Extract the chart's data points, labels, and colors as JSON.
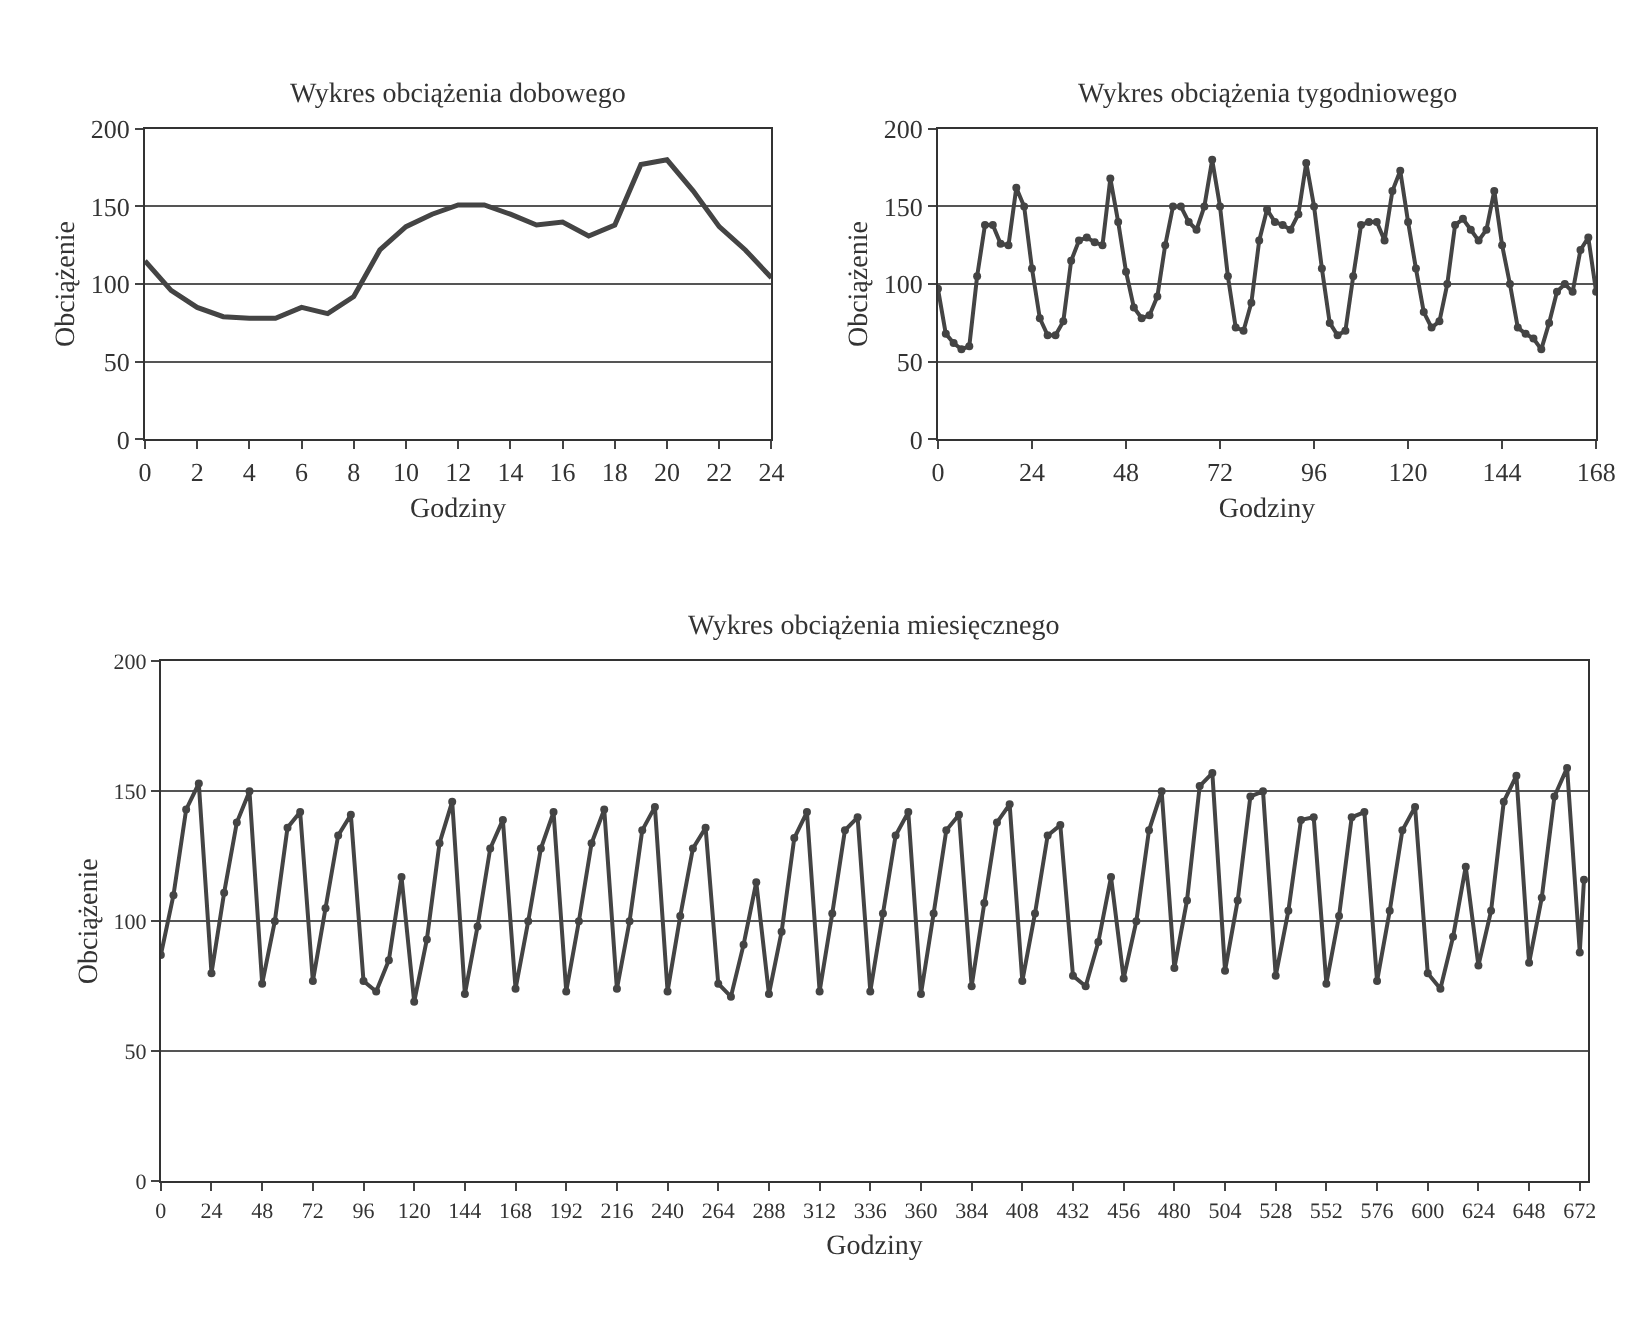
{
  "chart_data": [
    {
      "type": "line",
      "title": "Wykres obciążenia dobowego",
      "xlabel": "Godziny",
      "ylabel": "Obciążenie",
      "x": [
        0,
        1,
        2,
        3,
        4,
        5,
        6,
        7,
        8,
        9,
        10,
        11,
        12,
        13,
        14,
        15,
        16,
        17,
        18,
        19,
        20,
        21,
        22,
        23,
        24
      ],
      "series": [
        {
          "color": "#444444",
          "values": [
            115,
            96,
            85,
            79,
            78,
            78,
            85,
            81,
            92,
            122,
            137,
            145,
            151,
            151,
            145,
            138,
            140,
            131,
            138,
            177,
            180,
            160,
            137,
            122,
            104
          ]
        }
      ],
      "xlim": [
        0,
        24
      ],
      "xticks": [
        0,
        2,
        4,
        6,
        8,
        10,
        12,
        14,
        16,
        18,
        20,
        22,
        24
      ],
      "ylim": [
        0,
        200
      ],
      "yticks": [
        0,
        50,
        100,
        150,
        200
      ],
      "grid": "y",
      "marker": "none",
      "line_style": "solid"
    },
    {
      "type": "line",
      "title": "Wykres obciążenia tygodniowego",
      "xlabel": "Godziny",
      "ylabel": "Obciążenie",
      "x": [
        0,
        2,
        4,
        6,
        8,
        10,
        12,
        14,
        16,
        18,
        20,
        22,
        24,
        26,
        28,
        30,
        32,
        34,
        36,
        38,
        40,
        42,
        44,
        46,
        48,
        50,
        52,
        54,
        56,
        58,
        60,
        62,
        64,
        66,
        68,
        70,
        72,
        74,
        76,
        78,
        80,
        82,
        84,
        86,
        88,
        90,
        92,
        94,
        96,
        98,
        100,
        102,
        104,
        106,
        108,
        110,
        112,
        114,
        116,
        118,
        120,
        122,
        124,
        126,
        128,
        130,
        132,
        134,
        136,
        138,
        140,
        142,
        144,
        146,
        148,
        150,
        152,
        154,
        156,
        158,
        160,
        162,
        164,
        166,
        168
      ],
      "series": [
        {
          "color": "#444444",
          "values": [
            97,
            68,
            62,
            58,
            60,
            105,
            138,
            138,
            126,
            125,
            162,
            150,
            110,
            78,
            67,
            67,
            76,
            115,
            128,
            130,
            127,
            125,
            168,
            140,
            108,
            85,
            78,
            80,
            92,
            125,
            150,
            150,
            140,
            135,
            150,
            180,
            150,
            105,
            72,
            70,
            88,
            128,
            148,
            140,
            138,
            135,
            145,
            178,
            150,
            110,
            75,
            67,
            70,
            105,
            138,
            140,
            140,
            128,
            160,
            173,
            140,
            110,
            82,
            72,
            76,
            100,
            138,
            142,
            135,
            128,
            135,
            160,
            125,
            100,
            72,
            68,
            65,
            58,
            75,
            95,
            100,
            95,
            122,
            130,
            95
          ]
        }
      ],
      "xlim": [
        0,
        168
      ],
      "xticks": [
        0,
        24,
        48,
        72,
        96,
        120,
        144,
        168
      ],
      "ylim": [
        0,
        200
      ],
      "yticks": [
        0,
        50,
        100,
        150,
        200
      ],
      "grid": "y",
      "marker": "circle",
      "line_style": "solid"
    },
    {
      "type": "line",
      "title": "Wykres obciążenia miesięcznego",
      "xlabel": "Godziny",
      "ylabel": "Obciążenie",
      "x": [
        0,
        6,
        12,
        18,
        24,
        30,
        36,
        42,
        48,
        54,
        60,
        66,
        72,
        78,
        84,
        90,
        96,
        102,
        108,
        114,
        120,
        126,
        132,
        138,
        144,
        150,
        156,
        162,
        168,
        174,
        180,
        186,
        192,
        198,
        204,
        210,
        216,
        222,
        228,
        234,
        240,
        246,
        252,
        258,
        264,
        270,
        276,
        282,
        288,
        294,
        300,
        306,
        312,
        318,
        324,
        330,
        336,
        342,
        348,
        354,
        360,
        366,
        372,
        378,
        384,
        390,
        396,
        402,
        408,
        414,
        420,
        426,
        432,
        438,
        444,
        450,
        456,
        462,
        468,
        474,
        480,
        486,
        492,
        498,
        504,
        510,
        516,
        522,
        528,
        534,
        540,
        546,
        552,
        558,
        564,
        570,
        576,
        582,
        588,
        594,
        600,
        606,
        612,
        618,
        624,
        630,
        636,
        642,
        648,
        654,
        660,
        666,
        672,
        674
      ],
      "series": [
        {
          "color": "#444444",
          "values": [
            87,
            110,
            143,
            153,
            80,
            111,
            138,
            150,
            76,
            100,
            136,
            142,
            77,
            105,
            133,
            141,
            77,
            73,
            85,
            117,
            69,
            93,
            130,
            146,
            72,
            98,
            128,
            139,
            74,
            100,
            128,
            142,
            73,
            100,
            130,
            143,
            74,
            100,
            135,
            144,
            73,
            102,
            128,
            136,
            76,
            71,
            91,
            115,
            72,
            96,
            132,
            142,
            73,
            103,
            135,
            140,
            73,
            103,
            133,
            142,
            72,
            103,
            135,
            141,
            75,
            107,
            138,
            145,
            77,
            103,
            133,
            137,
            79,
            75,
            92,
            117,
            78,
            100,
            135,
            150,
            82,
            108,
            152,
            157,
            81,
            108,
            148,
            150,
            79,
            104,
            139,
            140,
            76,
            102,
            140,
            142,
            77,
            104,
            135,
            144,
            80,
            74,
            94,
            121,
            83,
            104,
            146,
            156,
            84,
            109,
            148,
            159,
            88,
            116
          ]
        }
      ],
      "xlim": [
        0,
        676
      ],
      "xticks": [
        0,
        24,
        48,
        72,
        96,
        120,
        144,
        168,
        192,
        216,
        240,
        264,
        288,
        312,
        336,
        360,
        384,
        408,
        432,
        456,
        480,
        504,
        528,
        552,
        576,
        600,
        624,
        648,
        672
      ],
      "ylim": [
        0,
        200
      ],
      "yticks": [
        0,
        50,
        100,
        150,
        200
      ],
      "grid": "y",
      "marker": "circle",
      "line_style": "solid"
    }
  ]
}
